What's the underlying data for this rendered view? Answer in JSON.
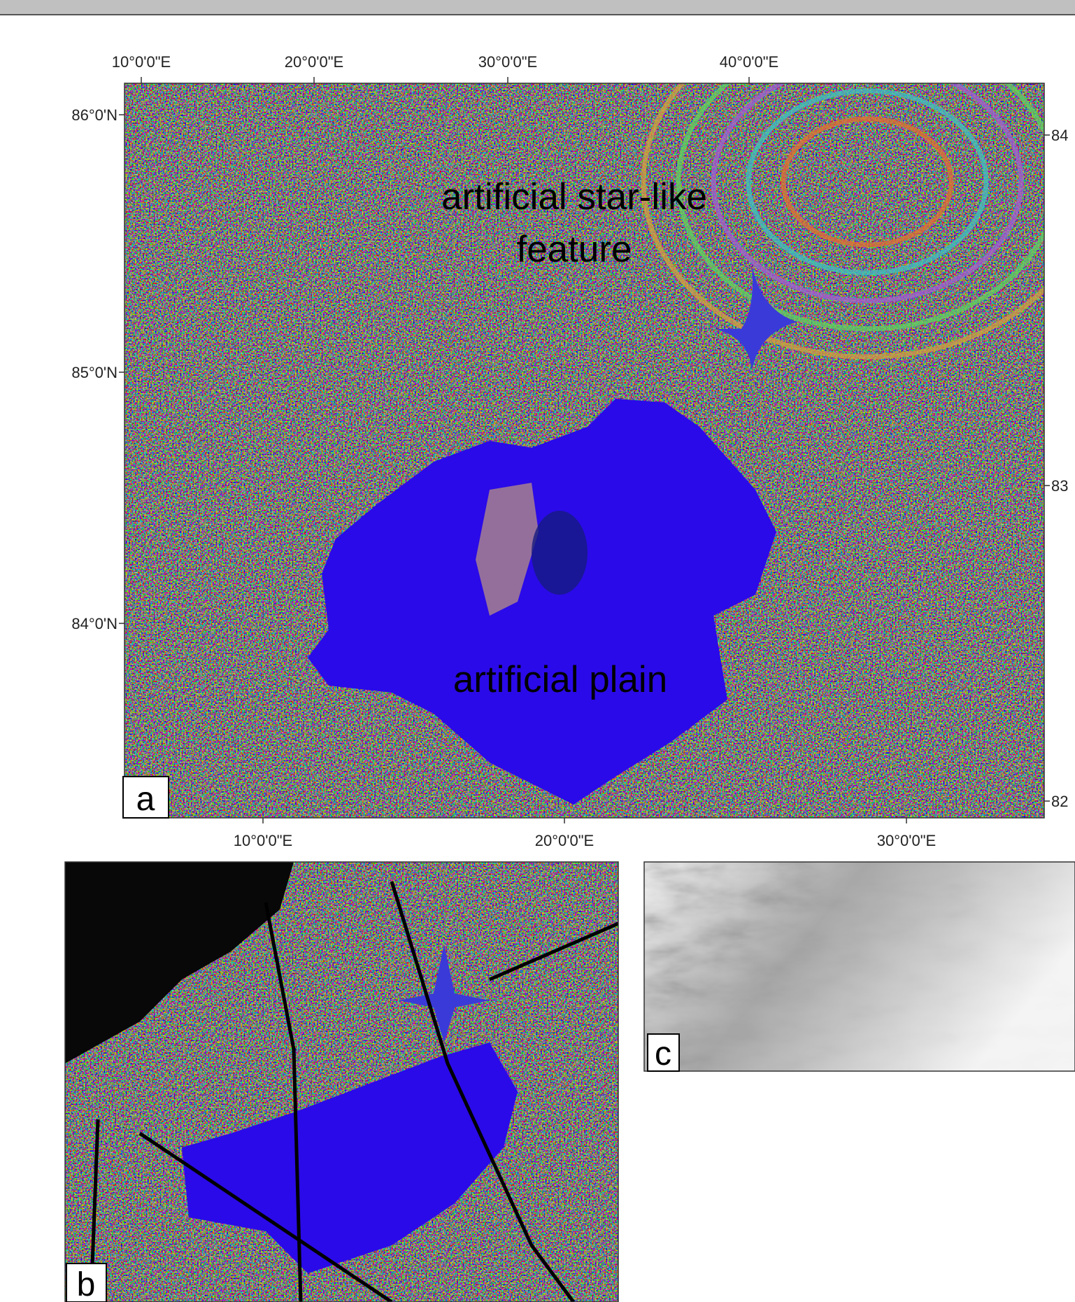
{
  "panel_a": {
    "letter": "a",
    "top_labels": [
      "10°0'0\"E",
      "20°0'0\"E",
      "30°0'0\"E",
      "40°0'0\"E"
    ],
    "left_labels": [
      "86°0'N",
      "85°0'N",
      "84°0'N"
    ],
    "right_labels": [
      "84",
      "83",
      "82"
    ],
    "bottom_labels": [
      "10°0'0\"E",
      "20°0'0\"E",
      "30°0'0\"E"
    ],
    "annotations": [
      "artificial star-like",
      "feature",
      "artificial plain"
    ]
  },
  "panel_b": {
    "letter": "b"
  },
  "panel_c": {
    "letter": "c"
  }
}
